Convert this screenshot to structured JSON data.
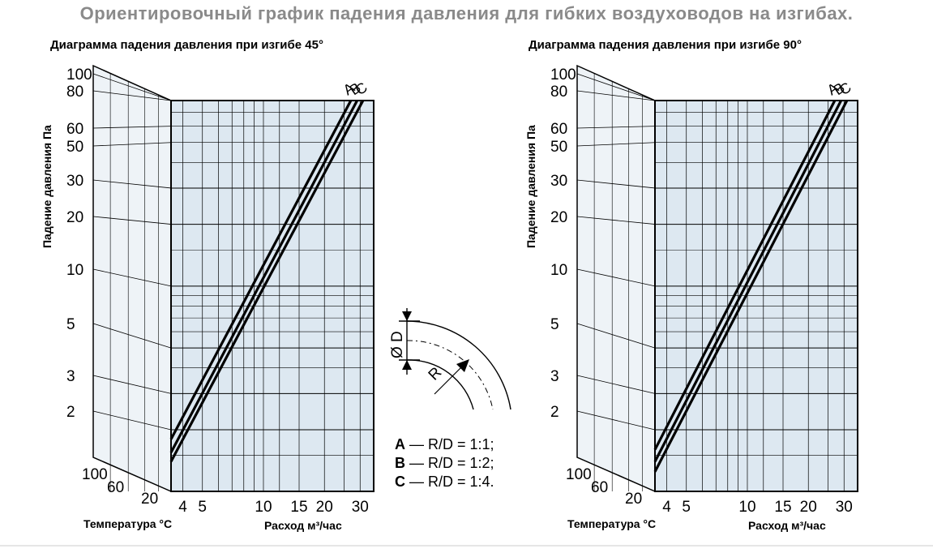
{
  "title": "Ориентировочный график падения давления для гибких воздуховодов на изгибах.",
  "colors": {
    "panel_fill": "#dde8f1",
    "side_fill": "#eef3f7",
    "grid": "#000000",
    "curve": "#000000",
    "title": "#8a8a8a"
  },
  "chart_data": [
    {
      "type": "line",
      "title": "Диаграмма падения давления при изгибе 45°",
      "xlabel": "Расход м³/час",
      "ylabel": "Падение давления Па",
      "temperature_label": "Температура °С",
      "temperature_ticks": [
        "100",
        "60",
        "20"
      ],
      "xscale": "log",
      "yscale": "log",
      "xlim": [
        3.5,
        35
      ],
      "ylim": [
        1.3,
        80
      ],
      "x_tick_labels": [
        "4",
        "5",
        "10",
        "15",
        "20",
        "30"
      ],
      "y_tick_labels": [
        "100",
        "80",
        "60",
        "50",
        "30",
        "20",
        "10",
        "5",
        "3",
        "2"
      ],
      "grid": true,
      "series": [
        {
          "name": "A",
          "x": [
            3.5,
            27
          ],
          "y": [
            1.8,
            80
          ]
        },
        {
          "name": "B",
          "x": [
            3.5,
            29
          ],
          "y": [
            1.55,
            80
          ]
        },
        {
          "name": "C",
          "x": [
            3.5,
            31
          ],
          "y": [
            1.4,
            80
          ]
        }
      ]
    },
    {
      "type": "line",
      "title": "Диаграмма падения давления при изгибе 90°",
      "xlabel": "Расход м³/час",
      "ylabel": "Падение давления Па",
      "temperature_label": "Температура °С",
      "temperature_ticks": [
        "100",
        "60",
        "20"
      ],
      "xscale": "log",
      "yscale": "log",
      "xlim": [
        3.5,
        35
      ],
      "ylim": [
        1.3,
        80
      ],
      "x_tick_labels": [
        "4",
        "5",
        "10",
        "15",
        "20",
        "30"
      ],
      "y_tick_labels": [
        "100",
        "80",
        "60",
        "50",
        "30",
        "20",
        "10",
        "5",
        "3",
        "2"
      ],
      "grid": true,
      "series": [
        {
          "name": "A",
          "x": [
            3.5,
            27
          ],
          "y": [
            1.6,
            80
          ]
        },
        {
          "name": "B",
          "x": [
            3.5,
            29
          ],
          "y": [
            1.4,
            80
          ]
        },
        {
          "name": "C",
          "x": [
            3.5,
            31
          ],
          "y": [
            1.25,
            80
          ]
        }
      ]
    }
  ],
  "diagram": {
    "diameter_label": "Ø D",
    "radius_label": "R"
  },
  "legend": [
    {
      "key": "A",
      "text": " — R/D = 1:1;"
    },
    {
      "key": "B",
      "text": " — R/D = 1:2;"
    },
    {
      "key": "C",
      "text": " — R/D = 1:4."
    }
  ]
}
